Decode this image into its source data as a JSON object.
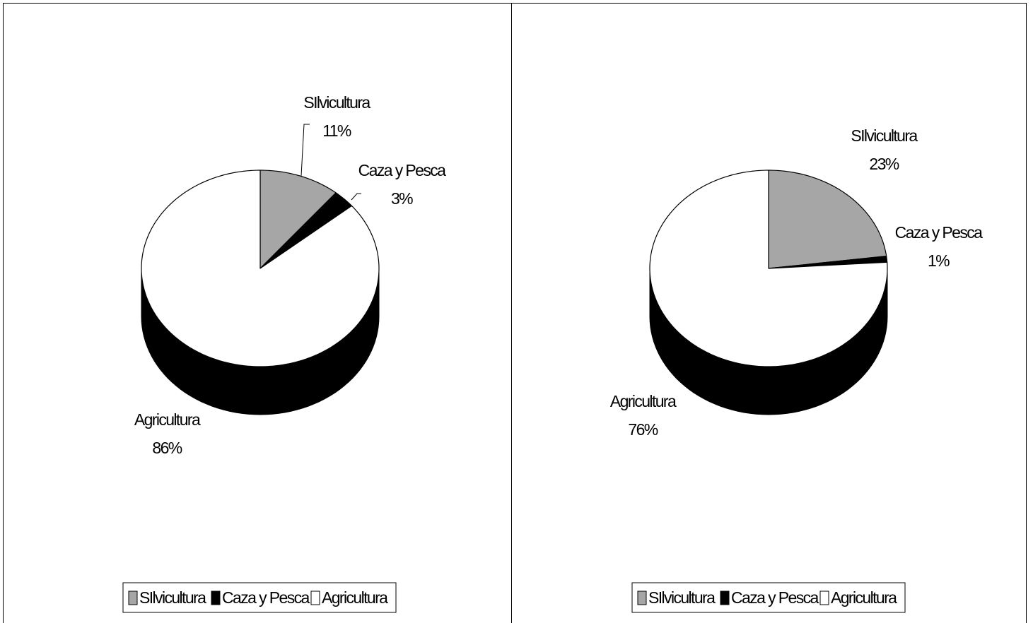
{
  "chart_data": [
    {
      "type": "pie",
      "style": "3d",
      "categories": [
        "Silvicultura",
        "Caza y Pesca",
        "Agricultura"
      ],
      "values": [
        11,
        3,
        86
      ],
      "labels": {
        "Silvicultura": [
          "SIlvicultura",
          "11%"
        ],
        "Caza y Pesca": [
          "Caza y Pesca",
          "3%"
        ],
        "Agricultura": [
          "Agricultura",
          "86%"
        ]
      },
      "colors": [
        "#a6a6a6",
        "#000000",
        "#ffffff"
      ],
      "legend": {
        "position": "bottom",
        "entries": [
          "SIlvicultura",
          "Caza y Pesca",
          "Agricultura"
        ]
      }
    },
    {
      "type": "pie",
      "style": "3d",
      "categories": [
        "Silvicultura",
        "Caza y Pesca",
        "Agricultura"
      ],
      "values": [
        23,
        1,
        76
      ],
      "labels": {
        "Silvicultura": [
          "SIlvicultura",
          "23%"
        ],
        "Caza y Pesca": [
          "Caza y Pesca",
          "1%"
        ],
        "Agricultura": [
          "Agricultura",
          "76%"
        ]
      },
      "colors": [
        "#a6a6a6",
        "#000000",
        "#ffffff"
      ],
      "legend": {
        "position": "bottom",
        "entries": [
          "SIlvicultura",
          "Caza y Pesca",
          "Agricultura"
        ]
      }
    }
  ]
}
